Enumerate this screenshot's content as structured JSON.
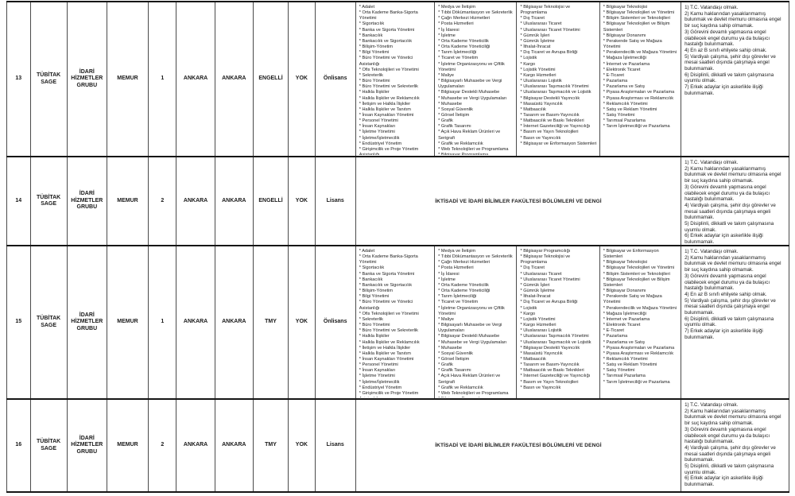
{
  "colors": {
    "background": "#ffffff",
    "border": "#161616",
    "text": "#1a1a1a"
  },
  "merged_faculty_text": "İKTİSADİ VE İDARİ BİLİMLER FAKÜLTESİ BÖLÜMLERİ VE DENGİ",
  "rows": [
    {
      "no": "13",
      "institution": "TÜBİTAK SAGE",
      "group": "İDARİ HİZMETLER GRUBU",
      "position": "MEMUR",
      "count": "1",
      "city": "ANKARA",
      "workplace": "ANKARA",
      "quota_type": "ENGELLİ",
      "kpss": "YOK",
      "education": "Önlisans",
      "programs": [
        [
          "Adalet",
          "Orta Kademe Banka-Sigorta Yönetimi",
          "Sigortacılık",
          "Banka ve Sigorta Yönetimi",
          "Bankacılık",
          "Bankacılık ve Sigortacılık",
          "Bilişim-Yönetim",
          "Bilgi Yönetimi",
          "Büro Yönetimi ve Yönetici Asistanlığı",
          "Ofis Teknolojileri ve Yönetimi",
          "Sekreterlik",
          "Büro Yönetimi",
          "Büro Yönetimi ve Sekreterlik",
          "Halkla İlişkiler",
          "Halkla İlişkiler ve Reklamcılık",
          "İletişim ve Halkla İlişkiler",
          "Halkla İlişkiler ve Tanıtım",
          "İnsan Kaynakları Yönetimi",
          "Personel Yönetimi",
          "İnsan Kaynakları",
          "İşletme Yönetimi",
          "İşletme/İşletmecilik",
          "Endüstriyel Yönetim",
          "Girişimcilik ve Proje Yönetim Asistanlığı",
          "Genel İşletme"
        ],
        [
          "Medya ve İletişim",
          "Tıbbi Dökümantasyon ve Sekreterlik",
          "Çağrı Merkezi Hizmetleri",
          "Posta Hizmetleri",
          "İş İdaresi",
          "İşletme",
          "Orta Kademe Yöneticilik",
          "Orta Kademe Yöneticiliği",
          "Tarım İşletmeciliği",
          "Ticaret ve Yönetim",
          "İşletme Organizasyonu ve Çiftlik Yönetimi",
          "Maliye",
          "Bilgisayarlı Muhasebe ve Vergi Uygulamaları",
          "Bilgisayar Destekli Muhasebe",
          "Muhasebe ve Vergi Uygulamaları",
          "Muhasebe",
          "Sosyal Güvenlik",
          "Görsel İletişim",
          "Grafik",
          "Grafik Tasarımı",
          "Açık Hava Reklam Ürünleri ve Serigrafi",
          "Grafik ve Reklamcılık",
          "Web Teknolojileri ve Programlama",
          "Bilgisayar Programlama",
          "Bilgisayar Programcılığı"
        ],
        [
          "Bilgisayar Teknolojisi ve Programlama",
          "Dış Ticaret",
          "Uluslararası Ticaret",
          "Uluslararası Ticaret Yönetimi",
          "Gümrük İşleri",
          "Gümrük İşletme",
          "İthalat-İhracat",
          "Dış Ticaret ve Avrupa Birliği",
          "Lojistik",
          "Kargo",
          "Lojistik Yönetimi",
          "Kargo Hizmetleri",
          "Uluslararası Lojistik",
          "Uluslararası Taşımacılık Yönetimi",
          "Uluslararası Taşımacılık ve Lojistik",
          "Bilgisayar Destekli Yayıncılık",
          "Masaüstü Yayıncılık",
          "Matbaacılık",
          "Tasarım ve Basım-Yayıncılık",
          "Matbaacılık ve Baskı Teknikleri",
          "İnternet Gazeteciliği ve Yayıncılığı",
          "Basım ve Yayın Teknolojileri",
          "Basın ve Yayıncılık",
          "Bilgisayar ve Enformasyon Sistemleri"
        ],
        [
          "Bilgisayar Teknolojisi",
          "Bilgisayar Teknolojileri ve Yönetimi",
          "Bilişim Sistemleri ve Teknolojileri",
          "Bilgisayar Teknolojileri ve Bilişim Sistemleri",
          "Bilgisayar Donanımı",
          "Perakende Satış ve Mağaza Yönetimi",
          "Perakendecilik ve Mağaza Yönetimi",
          "Mağaza İşletmeciliği",
          "İnternet ve Pazarlama",
          "Elektronik Ticaret",
          "E-Ticaret",
          "Pazarlama",
          "Pazarlama ve Satış",
          "Piyasa Araştırmaları ve Pazarlama",
          "Piyasa Araştırması ve Reklamcılık",
          "Reklamcılık Yönetimi",
          "Satış ve Reklam Yönetimi",
          "Satış Yönetimi",
          "Tarımsal Pazarlama",
          "Tarım İşletmeciliği ve Pazarlama"
        ]
      ],
      "requirements": [
        "1) T.C. Vatandaşı olmak.",
        "2) Kamu haklarından yasaklanmamış bulunmak ve devlet memuru olmasına engel bir suç kaydına sahip olmamak.",
        "3) Görevini devamlı yapmasına engel olabilecek engel durumu ya da bulaşıcı hastalığı bulunmamak.",
        "4) En az B sınıfı ehliyete sahip olmak.",
        "5) Vardiyalı çalışma, şehir dışı görevler ve mesai saatleri dışında çalışmaya engel bulunmamak.",
        "6) Disiplinli, dikkatli ve takım çalışmasına uyumlu olmak.",
        "7) Erkek adaylar için askerlikle ilişiği bulunmamak."
      ]
    },
    {
      "no": "14",
      "institution": "TÜBİTAK SAGE",
      "group": "İDARİ HİZMETLER GRUBU",
      "position": "MEMUR",
      "count": "2",
      "city": "ANKARA",
      "workplace": "ANKARA",
      "quota_type": "ENGELLİ",
      "kpss": "YOK",
      "education": "Lisans",
      "merged_programs": "İKTİSADİ VE İDARİ BİLİMLER FAKÜLTESİ BÖLÜMLERİ VE DENGİ",
      "requirements": [
        "1) T.C. Vatandaşı olmak.",
        "2) Kamu haklarından yasaklanmamış bulunmak ve devlet memuru olmasına engel bir suç kaydına sahip olmamak.",
        "3) Görevini devamlı yapmasına engel olabilecek engel durumu ya da bulaşıcı hastalığı bulunmamak.",
        "4) Vardiyalı çalışma, şehir dışı görevler ve mesai saatleri dışında çalışmaya engeli bulunmamak.",
        "5) Disiplinli, dikkatli ve takım çalışmasına uyumlu olmak.",
        "6) Erkek adaylar için askerlikle ilişiği bulunmamak."
      ]
    },
    {
      "no": "15",
      "institution": "TÜBİTAK SAGE",
      "group": "İDARİ HİZMETLER GRUBU",
      "position": "MEMUR",
      "count": "1",
      "city": "ANKARA",
      "workplace": "ANKARA",
      "quota_type": "TMY",
      "kpss": "YOK",
      "education": "Önlisans",
      "programs": [
        [
          "Adalet",
          "Orta Kademe Banka-Sigorta Yönetimi",
          "Sigortacılık",
          "Banka ve Sigorta Yönetimi",
          "Bankacılık",
          "Bankacılık ve Sigortacılık",
          "Bilişim-Yönetim",
          "Bilgi Yönetimi",
          "Büro Yönetimi ve Yönetici Asistanlığı",
          "Ofis Teknolojileri ve Yönetimi",
          "Sekreterlik",
          "Büro Yönetimi",
          "Büro Yönetimi ve Sekreterlik",
          "Halkla İlişkiler",
          "Halkla İlişkiler ve Reklamcılık",
          "İletişim ve Halkla İlişkiler",
          "Halkla İlişkiler ve Tanıtım",
          "İnsan Kaynakları Yönetimi",
          "Personel Yönetimi",
          "İnsan Kaynakları",
          "İşletme Yönetimi",
          "İşletme/İşletmecilik",
          "Endüstriyel Yönetim",
          "Girişimcilik ve Proje Yönetim Asistanlığı",
          "Genel İşletme"
        ],
        [
          "Medya ve İletişim",
          "Tıbbi Dökümantasyon ve Sekreterlik",
          "Çağrı Merkezi Hizmetleri",
          "Posta Hizmetleri",
          "İş İdaresi",
          "İşletme",
          "Orta Kademe Yöneticilik",
          "Orta Kademe Yöneticiliği",
          "Tarım İşletmeciliği",
          "Ticaret ve Yönetim",
          "İşletme Organizasyonu ve Çiftlik Yönetimi",
          "Maliye",
          "Bilgisayarlı Muhasebe ve Vergi Uygulamaları",
          "Bilgisayar Destekli Muhasebe",
          "Muhasebe ve Vergi Uygulamaları",
          "Muhasebe",
          "Sosyal Güvenlik",
          "Görsel İletişim",
          "Grafik",
          "Grafik Tasarımı",
          "Açık Hava Reklam Ürünleri ve Serigrafi",
          "Grafik ve Reklamcılık",
          "Web Teknolojileri ve Programlama",
          "Bilgisayar Programlama"
        ],
        [
          "Bilgisayar Programcılığı",
          "Bilgisayar Teknolojisi ve Programlama",
          "Dış Ticaret",
          "Uluslararası Ticaret",
          "Uluslararası Ticaret Yönetimi",
          "Gümrük İşleri",
          "Gümrük İşletme",
          "İthalat-İhracat",
          "Dış Ticaret ve Avrupa Birliği",
          "Lojistik",
          "Kargo",
          "Lojistik Yönetimi",
          "Kargo Hizmetleri",
          "Uluslararası Lojistik",
          "Uluslararası Taşımacılık Yönetimi",
          "Uluslararası Taşımacılık ve Lojistik",
          "Bilgisayar Destekli Yayıncılık",
          "Masaüstü Yayıncılık",
          "Matbaacılık",
          "Tasarım ve Basım-Yayıncılık",
          "Matbaacılık ve Baskı Teknikleri",
          "İnternet Gazeteciliği ve Yayıncılığı",
          "Basım ve Yayın Teknolojileri",
          "Basın ve Yayıncılık"
        ],
        [
          "Bilgisayar ve Enformasyon Sistemleri",
          "Bilgisayar Teknolojisi",
          "Bilgisayar Teknolojileri ve Yönetimi",
          "Bilişim Sistemleri ve Teknolojileri",
          "Bilgisayar Teknolojileri ve Bilişim Sistemleri",
          "Bilgisayar Donanımı",
          "Perakende Satış ve Mağaza Yönetimi",
          "Perakendecilik ve Mağaza Yönetimi",
          "Mağaza İşletmeciliği",
          "İnternet ve Pazarlama",
          "Elektronik Ticaret",
          "E-Ticaret",
          "Pazarlama",
          "Pazarlama ve Satış",
          "Piyasa Araştırmaları ve Pazarlama",
          "Piyasa Araştırması ve Reklamcılık",
          "Reklamcılık Yönetimi",
          "Satış ve Reklam Yönetimi",
          "Satış Yönetimi",
          "Tarımsal Pazarlama",
          "Tarım İşletmeciliği ve Pazarlama"
        ]
      ],
      "requirements": [
        "1) T.C. Vatandaşı olmak.",
        "2) Kamu haklarından yasaklanmamış bulunmak ve devlet memuru olmasına engel bir suç kaydına sahip olmamak.",
        "3) Görevini devamlı yapmasına engel olabilecek engel durumu ya da bulaşıcı hastalığı bulunmamak.",
        "4) En az B sınıfı ehliyete sahip olmak.",
        "5) Vardiyalı çalışma, şehir dışı görevler ve mesai saatleri dışında çalışmaya engel bulunmamak.",
        "6) Disiplinli, dikkatli ve takım çalışmasına uyumlu olmak.",
        "7) Erkek adaylar için askerlikle ilişiği bulunmamak."
      ]
    },
    {
      "no": "16",
      "institution": "TÜBİTAK SAGE",
      "group": "İDARİ HİZMETLER GRUBU",
      "position": "MEMUR",
      "count": "2",
      "city": "ANKARA",
      "workplace": "ANKARA",
      "quota_type": "TMY",
      "kpss": "YOK",
      "education": "Lisans",
      "merged_programs": "İKTİSADİ VE İDARİ BİLİMLER FAKÜLTESİ BÖLÜMLERİ VE DENGİ",
      "requirements": [
        "1) T.C. Vatandaşı olmak.",
        "2) Kamu haklarından yasaklanmamış bulunmak ve devlet memuru olmasına engel bir suç kaydına sahip olmamak.",
        "3) Görevini devamlı yapmasına engel olabilecek engel durumu ya da bulaşıcı hastalığı bulunmamak.",
        "4) Vardiyalı çalışma, şehir dışı görevler ve mesai saatleri dışında çalışmaya engeli bulunmamak.",
        "5) Disiplinli, dikkatli ve takım çalışmasına uyumlu olmak.",
        "6) Erkek adaylar için askerlikle ilişiği bulunmamak."
      ]
    }
  ]
}
